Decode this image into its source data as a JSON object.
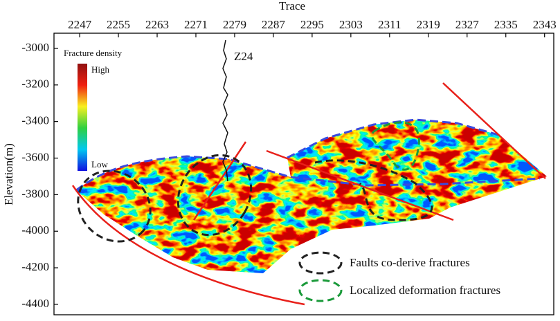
{
  "chart_data": {
    "type": "section",
    "x_label": "Trace",
    "y_label": "Elevation(m)",
    "xlim": [
      2241.7,
      2344.9
    ],
    "xticks": [
      2247,
      2255,
      2263,
      2271,
      2279,
      2287,
      2295,
      2303,
      2311,
      2319,
      2327,
      2335,
      2343
    ],
    "ylim": [
      -4457,
      -2917
    ],
    "yticks": [
      -3000,
      -3200,
      -3400,
      -3600,
      -3800,
      -4000,
      -4200,
      -4400
    ],
    "colorbar": {
      "title": "Fracture density",
      "high": "High",
      "low": "Low"
    },
    "well": "Z24",
    "legend": [
      {
        "label": "Faults co-derive fractures",
        "color": "#222222"
      },
      {
        "label": "Localized deformation fractures",
        "color": "#1a9a3a"
      }
    ]
  }
}
